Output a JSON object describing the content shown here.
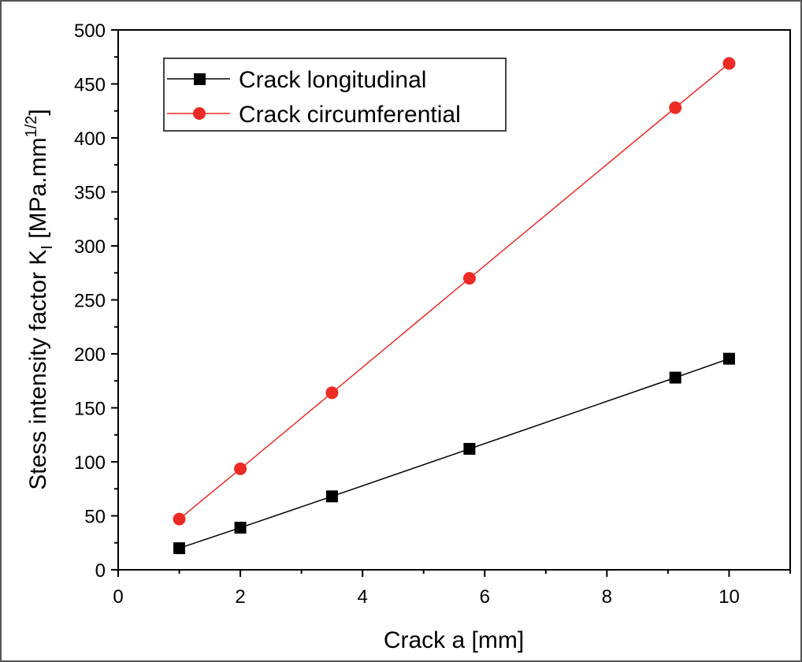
{
  "chart_data": {
    "type": "line",
    "title": "",
    "xlabel": "Crack a  [mm]",
    "ylabel": {
      "main": "Stess intensity factor K",
      "subscript": "I",
      "unit_prefix": "  [MPa.mm",
      "superscript": "1/2",
      "unit_suffix": "]"
    },
    "xlim": [
      0,
      11
    ],
    "ylim": [
      0,
      500
    ],
    "x_ticks": [
      0,
      2,
      4,
      6,
      8,
      10
    ],
    "x_minor_ticks": [
      1,
      3,
      5,
      7,
      9,
      11
    ],
    "y_ticks": [
      0,
      50,
      100,
      150,
      200,
      250,
      300,
      350,
      400,
      450,
      500
    ],
    "y_minor_ticks": [
      25,
      75,
      125,
      175,
      225,
      275,
      325,
      375,
      425,
      475
    ],
    "grid": false,
    "legend_position": "upper-left",
    "series": [
      {
        "name": "Crack longitudinal",
        "color": "#000000",
        "marker": "square",
        "x": [
          1,
          2,
          3.5,
          5.75,
          9.12,
          10
        ],
        "values": [
          20,
          39,
          68,
          112,
          178,
          195.5
        ]
      },
      {
        "name": "Crack circumferential",
        "color": "#ee2a24",
        "marker": "circle",
        "x": [
          1,
          2,
          3.5,
          5.75,
          9.12,
          10
        ],
        "values": [
          47,
          93.5,
          164,
          270,
          428,
          469
        ]
      }
    ]
  },
  "colors": {
    "axis": "#000000",
    "frame_border": "#555555",
    "legend_border": "#444444"
  }
}
